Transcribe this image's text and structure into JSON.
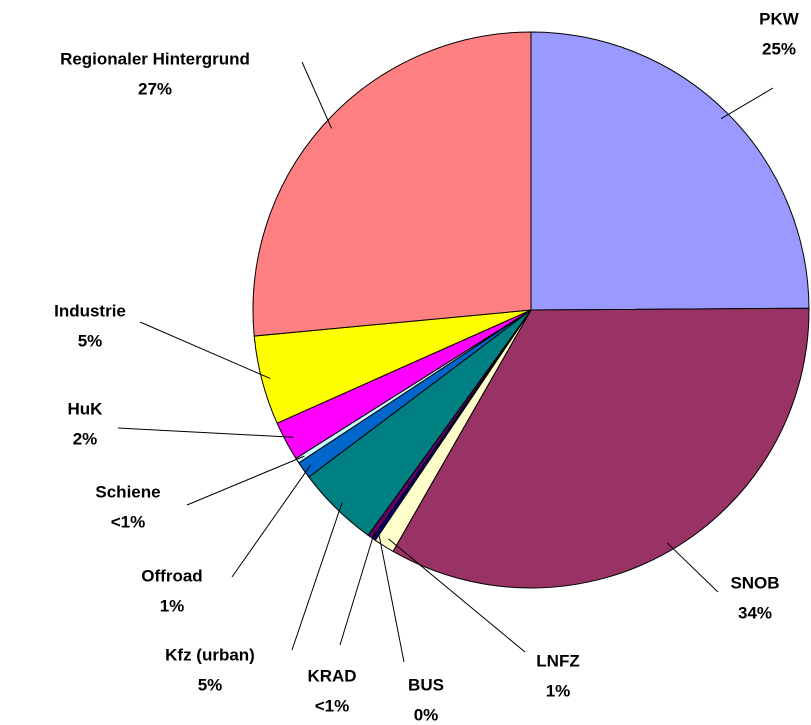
{
  "chart_data": {
    "type": "pie",
    "categories": [
      "PKW",
      "SNOB",
      "LNFZ",
      "BUS",
      "KRAD",
      "Kfz (urban)",
      "Offroad",
      "Schiene",
      "HuK",
      "Industrie",
      "Regionaler Hintergrund"
    ],
    "values": [
      25,
      33.5,
      1.2,
      0.2,
      0.3,
      4.8,
      1,
      0.3,
      2.3,
      5.2,
      26.6
    ],
    "value_labels": [
      "25%",
      "34%",
      "1%",
      "0%",
      "<1%",
      "5%",
      "1%",
      "<1%",
      "2%",
      "5%",
      "27%"
    ],
    "colors": [
      "#9999ff",
      "#993366",
      "#ffffcc",
      "#000080",
      "#660066",
      "#008080",
      "#0066cc",
      "#ccffff",
      "#ff00ff",
      "#ffff00",
      "#ff8080"
    ]
  }
}
